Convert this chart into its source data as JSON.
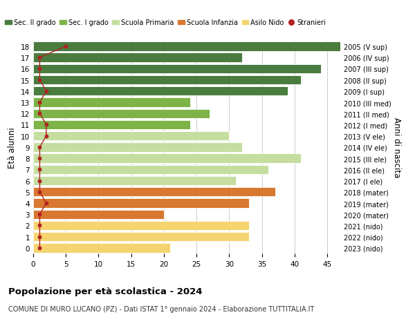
{
  "ages": [
    18,
    17,
    16,
    15,
    14,
    13,
    12,
    11,
    10,
    9,
    8,
    7,
    6,
    5,
    4,
    3,
    2,
    1,
    0
  ],
  "labels_right": [
    "2005 (V sup)",
    "2006 (IV sup)",
    "2007 (III sup)",
    "2008 (II sup)",
    "2009 (I sup)",
    "2010 (III med)",
    "2011 (II med)",
    "2012 (I med)",
    "2013 (V ele)",
    "2014 (IV ele)",
    "2015 (III ele)",
    "2016 (II ele)",
    "2017 (I ele)",
    "2018 (mater)",
    "2019 (mater)",
    "2020 (mater)",
    "2021 (nido)",
    "2022 (nido)",
    "2023 (nido)"
  ],
  "bar_values": [
    47,
    32,
    44,
    41,
    39,
    24,
    27,
    24,
    30,
    32,
    41,
    36,
    31,
    37,
    33,
    20,
    33,
    33,
    21
  ],
  "bar_colors": [
    "#4a7c3f",
    "#4a7c3f",
    "#4a7c3f",
    "#4a7c3f",
    "#4a7c3f",
    "#7db347",
    "#7db347",
    "#7db347",
    "#c5dea0",
    "#c5dea0",
    "#c5dea0",
    "#c5dea0",
    "#c5dea0",
    "#d97830",
    "#d97830",
    "#d97830",
    "#f5d470",
    "#f5d470",
    "#f5d470"
  ],
  "stranieri_x": [
    5,
    1,
    1,
    1,
    2,
    1,
    1,
    2,
    2,
    1,
    1,
    1,
    1,
    1,
    2,
    1,
    1,
    1,
    1
  ],
  "xlabel": "",
  "ylabel_left": "Età alunni",
  "ylabel_right": "Anni di nascita",
  "title": "Popolazione per età scolastica - 2024",
  "subtitle": "COMUNE DI MURO LUCANO (PZ) - Dati ISTAT 1° gennaio 2024 - Elaborazione TUTTITALIA.IT",
  "xlim": [
    0,
    47
  ],
  "xticks": [
    0,
    5,
    10,
    15,
    20,
    25,
    30,
    35,
    40,
    45
  ],
  "legend_labels": [
    "Sec. II grado",
    "Sec. I grado",
    "Scuola Primaria",
    "Scuola Infanzia",
    "Asilo Nido",
    "Stranieri"
  ],
  "legend_colors": [
    "#4a7c3f",
    "#7db347",
    "#c5dea0",
    "#d97830",
    "#f5d470",
    "#b22222"
  ],
  "bg_color": "#ffffff",
  "bar_height": 0.82,
  "grid_color": "#cccccc",
  "stranieri_color": "#b22222",
  "stranieri_line_color": "#b22222"
}
